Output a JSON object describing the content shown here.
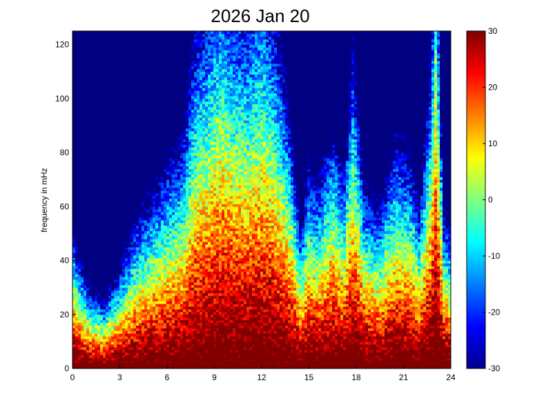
{
  "chart_data": {
    "type": "heatmap",
    "title": "2026 Jan 20",
    "xlabel": "",
    "ylabel": "frequency in mHz",
    "xlim": [
      0,
      24
    ],
    "ylim": [
      0,
      125
    ],
    "x_ticks": [
      "0",
      "3",
      "6",
      "9",
      "12",
      "15",
      "18",
      "21",
      "24"
    ],
    "y_ticks": [
      "0",
      "20",
      "40",
      "60",
      "80",
      "100",
      "120"
    ],
    "colorbar": {
      "range": [
        -30,
        30
      ],
      "ticks": [
        "30",
        "20",
        "10",
        "0",
        "-10",
        "-20",
        "-30"
      ],
      "colormap": "jet"
    },
    "grid": false,
    "profile": {
      "description_hours": [
        0,
        1,
        2,
        3,
        4,
        5,
        6,
        7,
        7.8,
        8.5,
        9.5,
        10,
        11,
        12,
        13,
        13.8,
        14.5,
        15,
        15.6,
        16.5,
        17.2,
        17.8,
        18.5,
        19.5,
        20.5,
        21.5,
        22,
        22.8,
        23,
        23.5,
        24
      ],
      "reach_mHz": [
        30,
        18,
        15,
        22,
        32,
        38,
        45,
        50,
        75,
        80,
        95,
        85,
        80,
        90,
        75,
        55,
        30,
        45,
        40,
        55,
        42,
        70,
        40,
        35,
        50,
        45,
        35,
        70,
        120,
        35,
        30
      ]
    }
  }
}
